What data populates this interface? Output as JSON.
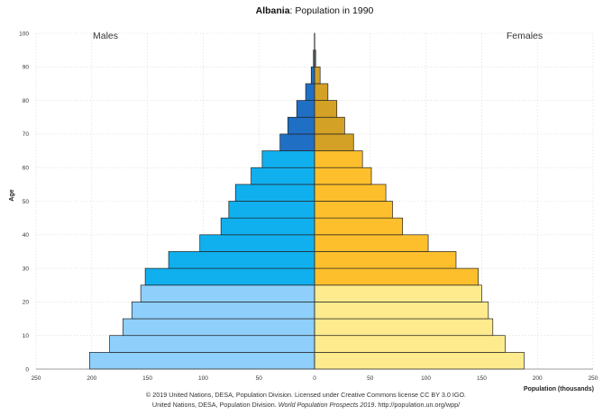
{
  "chart_data": {
    "type": "bar",
    "orientation": "horizontal-population-pyramid",
    "title_bold": "Albania",
    "title_rest": ": Population in 1990",
    "left_label": "Males",
    "right_label": "Females",
    "ylabel": "Age",
    "xlabel": "Population (thousands)",
    "xlim": [
      -250,
      250
    ],
    "ylim": [
      0,
      100
    ],
    "x_ticks": [
      -250,
      -200,
      -150,
      -100,
      -50,
      0,
      50,
      100,
      150,
      200,
      250
    ],
    "x_tick_labels": [
      "250",
      "200",
      "150",
      "100",
      "50",
      "0",
      "50",
      "100",
      "150",
      "200",
      "250"
    ],
    "y_ticks": [
      0,
      10,
      20,
      30,
      40,
      50,
      60,
      70,
      80,
      90,
      100
    ],
    "y_tick_labels": [
      "0",
      "10",
      "20",
      "30",
      "40",
      "50",
      "60",
      "70",
      "80",
      "90",
      "100"
    ],
    "grid": true,
    "categories": [
      "0-4",
      "5-9",
      "10-14",
      "15-19",
      "20-24",
      "25-29",
      "30-34",
      "35-39",
      "40-44",
      "45-49",
      "50-54",
      "55-59",
      "60-64",
      "65-69",
      "70-74",
      "75-79",
      "80-84",
      "85-89",
      "90-94",
      "95-99"
    ],
    "series": [
      {
        "name": "Males",
        "values": [
          202,
          184,
          172,
          164,
          156,
          152,
          131,
          103,
          84,
          77,
          71,
          57,
          47,
          31,
          24,
          16,
          8,
          3,
          1,
          0.2
        ],
        "colors_by_age_group": {
          "0-24": "#8ecffb",
          "25-64": "#10b0ee",
          "65+": "#1f6fc5"
        }
      },
      {
        "name": "Females",
        "values": [
          188,
          171,
          160,
          156,
          150,
          147,
          127,
          102,
          79,
          70,
          64,
          51,
          43,
          35,
          27,
          20,
          12,
          5,
          1,
          0.2
        ],
        "colors_by_age_group": {
          "0-24": "#fdeb8d",
          "25-64": "#fdbf2c",
          "65+": "#d3a125"
        }
      }
    ],
    "footer_line1": "© 2019 United Nations, DESA, Population Division. Licensed under Creative Commons license CC BY 3.0 IGO.",
    "footer_line2_prefix": "United Nations, DESA, Population Division. ",
    "footer_line2_italic": "World Population Prospects 2019",
    "footer_line2_suffix": ". http://population.un.org/wpp/"
  }
}
